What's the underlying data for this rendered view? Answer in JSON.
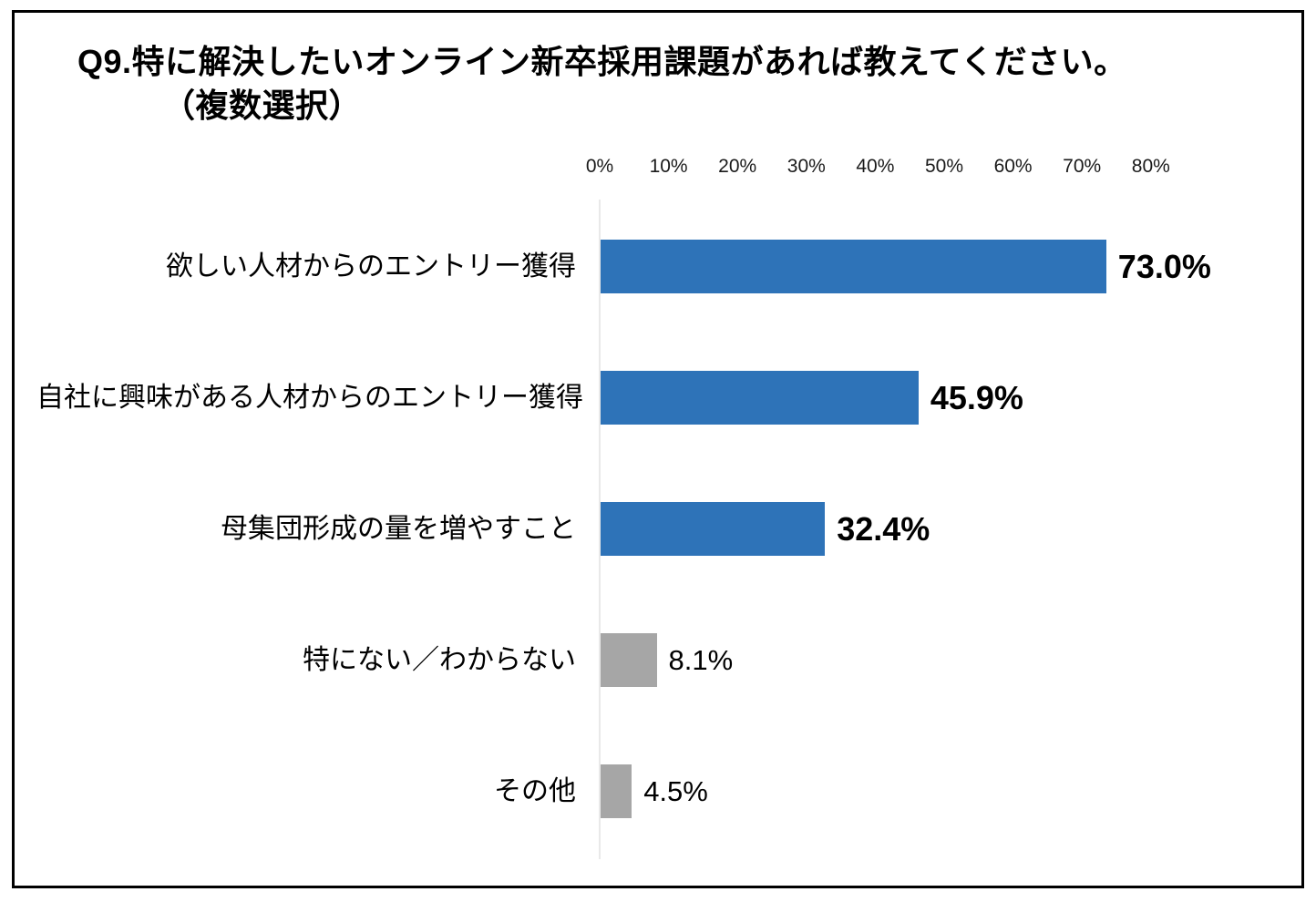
{
  "title": {
    "line1": "Q9.特に解決したいオンライン新卒採用課題があれば教えてください。",
    "line2": "（複数選択）"
  },
  "chart_data": {
    "type": "bar",
    "orientation": "horizontal",
    "title": "Q9.特に解決したいオンライン新卒採用課題があれば教えてください。（複数選択）",
    "categories": [
      "欲しい人材からのエントリー獲得",
      "自社に興味がある人材からのエントリー獲得",
      "母集団形成の量を増やすこと",
      "特にない／わからない",
      "その他"
    ],
    "values": [
      73.0,
      45.9,
      32.4,
      8.1,
      4.5
    ],
    "value_labels": [
      "73.0%",
      "45.9%",
      "32.4%",
      "8.1%",
      "4.5%"
    ],
    "value_label_bold": [
      true,
      true,
      true,
      false,
      false
    ],
    "bar_colors": [
      "#2e73b8",
      "#2e73b8",
      "#2e73b8",
      "#a6a6a6",
      "#a6a6a6"
    ],
    "x_ticks": [
      "0%",
      "10%",
      "20%",
      "30%",
      "40%",
      "50%",
      "60%",
      "70%",
      "80%"
    ],
    "xlim": [
      0,
      80
    ],
    "xlabel": "",
    "ylabel": "",
    "grid": false,
    "legend": "none",
    "colors": {
      "primary_blue": "#2e73b8",
      "muted_gray": "#a6a6a6",
      "axis_line": "#e9e9e9",
      "frame_border": "#000000",
      "background": "#ffffff",
      "text": "#000000"
    }
  }
}
